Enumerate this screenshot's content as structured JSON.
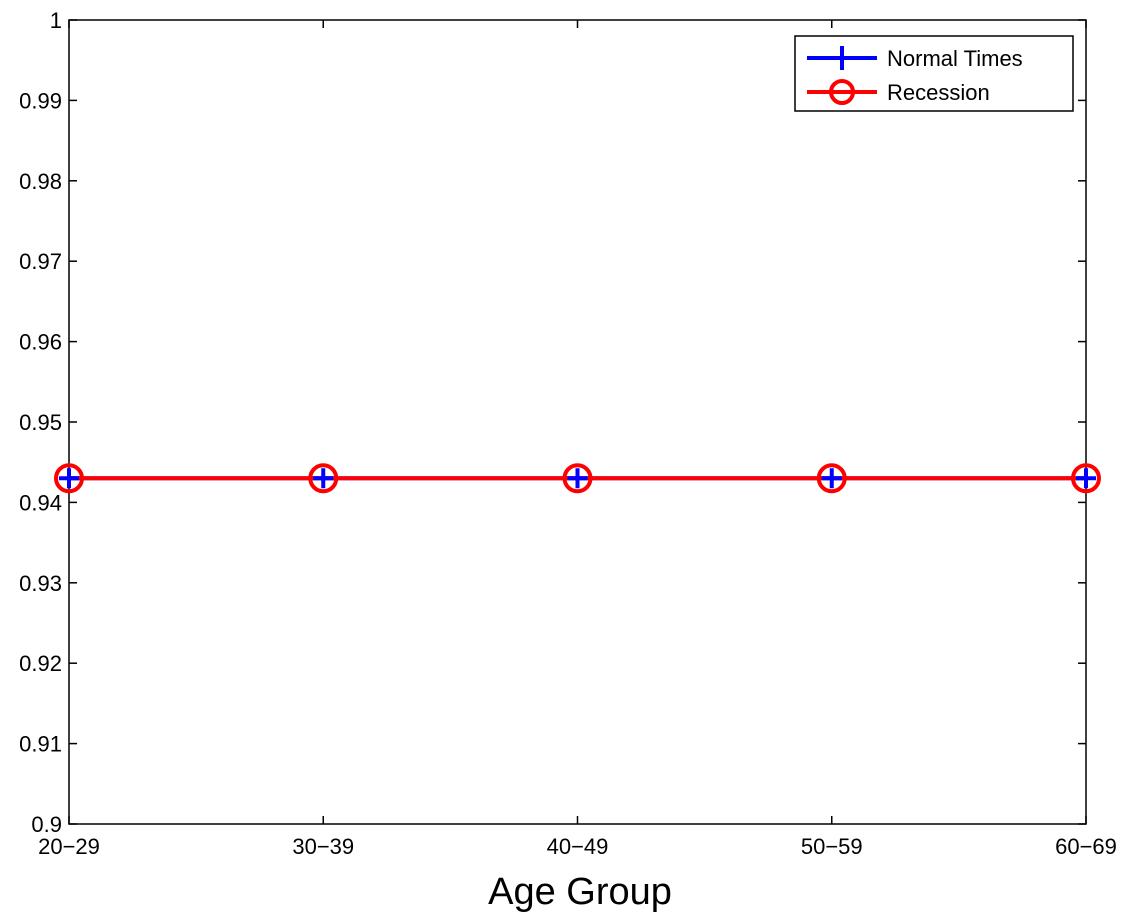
{
  "chart_data": {
    "type": "line",
    "title": "",
    "xlabel": "Age Group",
    "ylabel": "",
    "categories": [
      "20−29",
      "30−39",
      "40−49",
      "50−59",
      "60−69"
    ],
    "yticks": [
      "0.9",
      "0.91",
      "0.92",
      "0.93",
      "0.94",
      "0.95",
      "0.96",
      "0.97",
      "0.98",
      "0.99",
      "1"
    ],
    "ylim": [
      0.9,
      1.0
    ],
    "grid": false,
    "legend_position": "top-right",
    "series": [
      {
        "name": "Normal Times",
        "values": [
          0.943,
          0.943,
          0.943,
          0.943,
          0.943
        ],
        "color": "#0000ff",
        "marker": "plus"
      },
      {
        "name": "Recession",
        "values": [
          0.943,
          0.943,
          0.943,
          0.943,
          0.943
        ],
        "color": "#ff0000",
        "marker": "circle"
      }
    ]
  }
}
